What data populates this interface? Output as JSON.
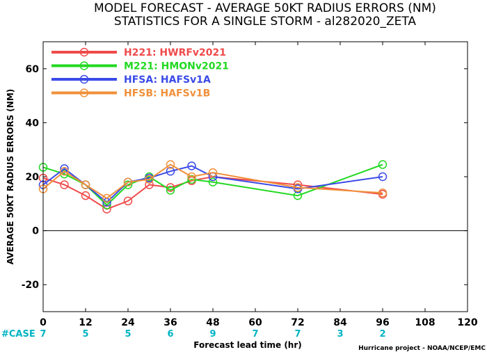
{
  "chart_data": {
    "type": "line",
    "title": "MODEL FORECAST - AVERAGE 50KT RADIUS ERRORS (NM)",
    "subtitle": "STATISTICS FOR A SINGLE STORM - al282020_ZETA",
    "xlabel": "Forecast lead time (hr)",
    "ylabel": "AVERAGE 50KT RADIUS ERRORS (NM)",
    "xlim": [
      0,
      120
    ],
    "ylim": [
      -30,
      70
    ],
    "xticks": [
      0,
      12,
      24,
      36,
      48,
      60,
      72,
      84,
      96,
      108,
      120
    ],
    "yticks": [
      -20,
      0,
      20,
      40,
      60
    ],
    "zero_line": 0,
    "legend_position": "top-left",
    "case_label": "#CASE",
    "cases": [
      {
        "x": 0,
        "n": "7"
      },
      {
        "x": 12,
        "n": "5"
      },
      {
        "x": 24,
        "n": "5"
      },
      {
        "x": 36,
        "n": "6"
      },
      {
        "x": 48,
        "n": "9"
      },
      {
        "x": 60,
        "n": "7"
      },
      {
        "x": 72,
        "n": "7"
      },
      {
        "x": 84,
        "n": "3"
      },
      {
        "x": 96,
        "n": "2"
      }
    ],
    "series": [
      {
        "name": "H221: HWRFv2021",
        "color": "#f04a4a",
        "x": [
          0,
          6,
          12,
          18,
          24,
          30,
          36,
          42,
          48,
          72,
          96
        ],
        "y": [
          19.5,
          17,
          13,
          8,
          11,
          17,
          16,
          18.5,
          20,
          17,
          13.5
        ]
      },
      {
        "name": "M221: HMONv2021",
        "color": "#22d922",
        "x": [
          0,
          6,
          12,
          18,
          24,
          30,
          36,
          42,
          48,
          72,
          96
        ],
        "y": [
          23.5,
          21,
          17,
          9.5,
          17,
          20,
          15,
          19,
          18,
          13,
          24.5
        ]
      },
      {
        "name": "HFSA: HAFSv1A",
        "color": "#3a4ae8",
        "x": [
          0,
          6,
          12,
          18,
          24,
          30,
          36,
          42,
          48,
          72,
          96
        ],
        "y": [
          17,
          23,
          17,
          10.5,
          18,
          19.5,
          22,
          24,
          20,
          15.5,
          20
        ]
      },
      {
        "name": "HFSB: HAFSv1B",
        "color": "#f0903a",
        "x": [
          0,
          6,
          12,
          18,
          24,
          30,
          36,
          42,
          48,
          72,
          96
        ],
        "y": [
          15.5,
          22,
          17,
          12,
          18,
          19,
          24.5,
          20,
          21.5,
          16,
          14
        ]
      }
    ]
  },
  "credit": "Hurricane project - NOAA/NCEP/EMC"
}
